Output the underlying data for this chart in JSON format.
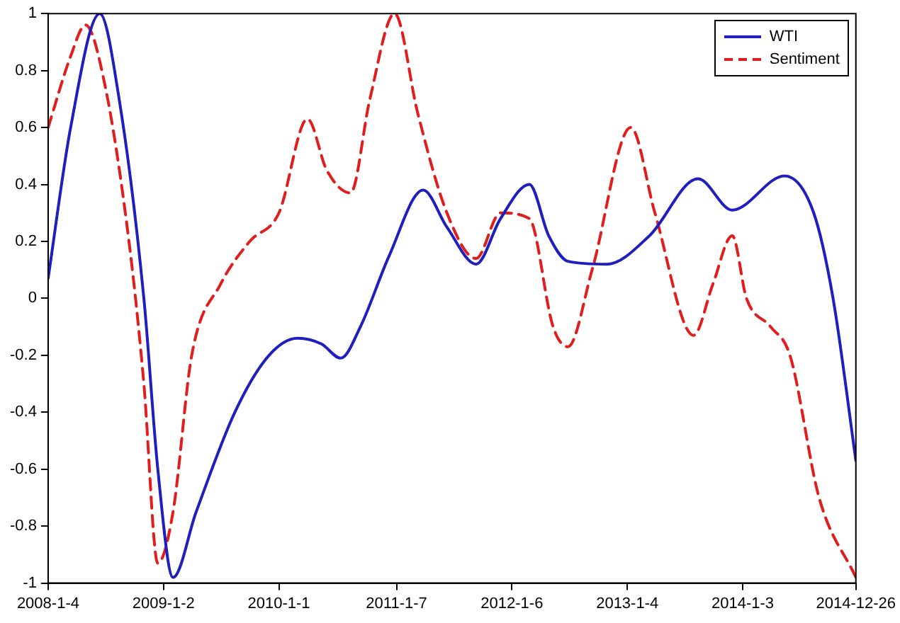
{
  "chart_data": {
    "type": "line",
    "legend": "top right",
    "grid": false,
    "marker": "none",
    "xlim": [
      "2008-01-04",
      "2014-12-26"
    ],
    "xticks": [
      {
        "value": "2008-01-04",
        "label": "2008-1-4"
      },
      {
        "value": "2009-01-02",
        "label": "2009-1-2"
      },
      {
        "value": "2010-01-01",
        "label": "2010-1-1"
      },
      {
        "value": "2011-01-07",
        "label": "2011-1-7"
      },
      {
        "value": "2012-01-06",
        "label": "2012-1-6"
      },
      {
        "value": "2013-01-04",
        "label": "2013-1-4"
      },
      {
        "value": "2014-01-03",
        "label": "2014-1-3"
      },
      {
        "value": "2014-12-26",
        "label": "2014-12-26"
      }
    ],
    "ylim": [
      -1,
      1
    ],
    "yticks": [
      -1,
      -0.8,
      -0.6,
      -0.4,
      -0.2,
      0,
      0.2,
      0.4,
      0.6,
      0.8,
      1
    ],
    "series": [
      {
        "name": "WTI",
        "color": "#1f1fbf",
        "line_style": "solid",
        "x": [
          "2008-01-04",
          "2008-03-15",
          "2008-06-15",
          "2008-08-15",
          "2008-11-01",
          "2008-12-15",
          "2009-02-01",
          "2009-04-15",
          "2009-08-15",
          "2009-12-01",
          "2010-03-01",
          "2010-05-15",
          "2010-07-15",
          "2010-09-15",
          "2010-12-15",
          "2011-04-01",
          "2011-06-15",
          "2011-09-15",
          "2011-12-01",
          "2012-03-01",
          "2012-05-01",
          "2012-07-01",
          "2012-11-01",
          "2013-03-15",
          "2013-08-15",
          "2013-12-01",
          "2014-05-15",
          "2014-08-15",
          "2014-10-15",
          "2014-12-26"
        ],
        "values": [
          0.07,
          0.6,
          1.0,
          0.7,
          0.0,
          -0.6,
          -0.98,
          -0.75,
          -0.4,
          -0.2,
          -0.14,
          -0.16,
          -0.21,
          -0.1,
          0.15,
          0.38,
          0.25,
          0.12,
          0.28,
          0.4,
          0.22,
          0.13,
          0.12,
          0.22,
          0.42,
          0.31,
          0.43,
          0.3,
          0.0,
          -0.57
        ]
      },
      {
        "name": "Sentiment",
        "color": "#e01e1e",
        "line_style": "dashed",
        "x": [
          "2008-01-04",
          "2008-03-15",
          "2008-05-01",
          "2008-07-01",
          "2008-09-15",
          "2008-11-01",
          "2008-12-15",
          "2009-02-01",
          "2009-04-01",
          "2009-07-01",
          "2009-10-01",
          "2010-01-01",
          "2010-04-01",
          "2010-06-01",
          "2010-08-15",
          "2010-10-15",
          "2011-01-01",
          "2011-03-15",
          "2011-06-15",
          "2011-09-15",
          "2011-12-01",
          "2012-03-01",
          "2012-05-15",
          "2012-07-01",
          "2012-09-15",
          "2013-01-15",
          "2013-04-01",
          "2013-08-01",
          "2013-10-01",
          "2013-12-01",
          "2014-01-15",
          "2014-04-01",
          "2014-06-01",
          "2014-09-01",
          "2014-12-26"
        ],
        "values": [
          0.6,
          0.85,
          0.96,
          0.75,
          0.2,
          -0.3,
          -0.93,
          -0.75,
          -0.2,
          0.05,
          0.2,
          0.3,
          0.63,
          0.45,
          0.37,
          0.7,
          1.0,
          0.65,
          0.3,
          0.14,
          0.3,
          0.28,
          -0.1,
          -0.17,
          0.1,
          0.6,
          0.3,
          -0.13,
          0.05,
          0.22,
          0.0,
          -0.1,
          -0.2,
          -0.7,
          -0.98
        ]
      }
    ]
  }
}
